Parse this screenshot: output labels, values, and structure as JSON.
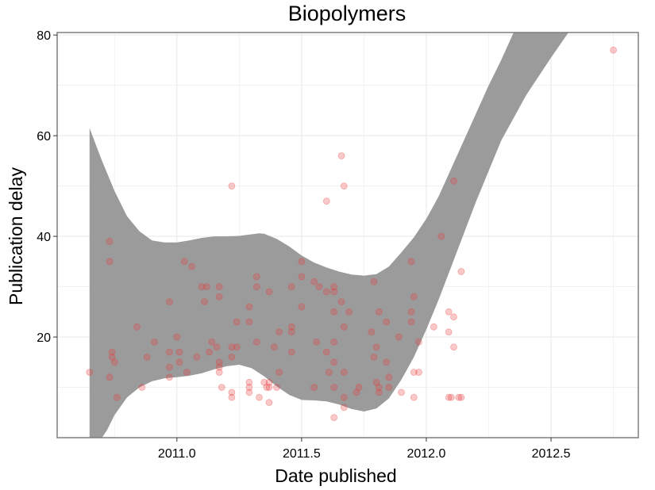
{
  "chart_data": {
    "type": "scatter",
    "title": "Biopolymers",
    "xlabel": "Date published",
    "ylabel": "Publication delay",
    "xlim": [
      2010.52,
      2012.85
    ],
    "ylim": [
      0,
      80.5
    ],
    "xticks": [
      2011.0,
      2011.5,
      2012.0,
      2012.5
    ],
    "xtick_labels": [
      "2011.0",
      "2011.5",
      "2012.0",
      "2012.5"
    ],
    "yticks": [
      20,
      40,
      60,
      80
    ],
    "ytick_labels": [
      "20",
      "40",
      "60",
      "80"
    ],
    "grid": true,
    "point_color": "#e8393a",
    "band_color": "#999999",
    "frame_color": "#7f7f7f",
    "grid_color": "#ebebeb",
    "points": [
      [
        2010.65,
        13
      ],
      [
        2010.73,
        39
      ],
      [
        2010.73,
        35
      ],
      [
        2010.73,
        12
      ],
      [
        2010.74,
        17
      ],
      [
        2010.74,
        16
      ],
      [
        2010.75,
        15
      ],
      [
        2010.76,
        8
      ],
      [
        2010.84,
        22
      ],
      [
        2010.86,
        10
      ],
      [
        2010.88,
        16
      ],
      [
        2010.91,
        19
      ],
      [
        2010.97,
        27
      ],
      [
        2010.97,
        17
      ],
      [
        2010.97,
        14
      ],
      [
        2010.97,
        12
      ],
      [
        2011.0,
        20
      ],
      [
        2011.01,
        17
      ],
      [
        2011.01,
        15
      ],
      [
        2011.03,
        35
      ],
      [
        2011.04,
        13
      ],
      [
        2011.06,
        34
      ],
      [
        2011.08,
        16
      ],
      [
        2011.1,
        30
      ],
      [
        2011.11,
        27
      ],
      [
        2011.12,
        30
      ],
      [
        2011.13,
        17
      ],
      [
        2011.14,
        19
      ],
      [
        2011.16,
        18
      ],
      [
        2011.17,
        30
      ],
      [
        2011.17,
        28
      ],
      [
        2011.17,
        15
      ],
      [
        2011.17,
        14
      ],
      [
        2011.17,
        13
      ],
      [
        2011.18,
        10
      ],
      [
        2011.22,
        50
      ],
      [
        2011.22,
        18
      ],
      [
        2011.22,
        16
      ],
      [
        2011.22,
        9
      ],
      [
        2011.22,
        8
      ],
      [
        2011.24,
        23
      ],
      [
        2011.24,
        18
      ],
      [
        2011.29,
        26
      ],
      [
        2011.29,
        23
      ],
      [
        2011.29,
        11
      ],
      [
        2011.29,
        10
      ],
      [
        2011.29,
        9
      ],
      [
        2011.32,
        32
      ],
      [
        2011.32,
        30
      ],
      [
        2011.32,
        19
      ],
      [
        2011.33,
        8
      ],
      [
        2011.35,
        11
      ],
      [
        2011.36,
        10
      ],
      [
        2011.37,
        29
      ],
      [
        2011.37,
        11
      ],
      [
        2011.37,
        10
      ],
      [
        2011.37,
        7
      ],
      [
        2011.39,
        18
      ],
      [
        2011.4,
        10
      ],
      [
        2011.41,
        21
      ],
      [
        2011.41,
        13
      ],
      [
        2011.46,
        30
      ],
      [
        2011.46,
        22
      ],
      [
        2011.46,
        21
      ],
      [
        2011.46,
        17
      ],
      [
        2011.5,
        35
      ],
      [
        2011.5,
        32
      ],
      [
        2011.5,
        26
      ],
      [
        2011.55,
        31
      ],
      [
        2011.55,
        10
      ],
      [
        2011.56,
        19
      ],
      [
        2011.57,
        30
      ],
      [
        2011.6,
        47
      ],
      [
        2011.6,
        29
      ],
      [
        2011.6,
        17
      ],
      [
        2011.61,
        13
      ],
      [
        2011.63,
        30
      ],
      [
        2011.63,
        29
      ],
      [
        2011.63,
        25
      ],
      [
        2011.63,
        19
      ],
      [
        2011.63,
        15
      ],
      [
        2011.63,
        10
      ],
      [
        2011.63,
        4
      ],
      [
        2011.66,
        56
      ],
      [
        2011.66,
        27
      ],
      [
        2011.67,
        50
      ],
      [
        2011.67,
        22
      ],
      [
        2011.67,
        13
      ],
      [
        2011.67,
        8
      ],
      [
        2011.67,
        6
      ],
      [
        2011.69,
        25
      ],
      [
        2011.72,
        9
      ],
      [
        2011.73,
        10
      ],
      [
        2011.78,
        21
      ],
      [
        2011.79,
        31
      ],
      [
        2011.79,
        16
      ],
      [
        2011.8,
        18
      ],
      [
        2011.8,
        11
      ],
      [
        2011.81,
        25
      ],
      [
        2011.81,
        10
      ],
      [
        2011.81,
        9
      ],
      [
        2011.84,
        23
      ],
      [
        2011.84,
        15
      ],
      [
        2011.85,
        10
      ],
      [
        2011.85,
        12
      ],
      [
        2011.89,
        20
      ],
      [
        2011.9,
        9
      ],
      [
        2011.94,
        35
      ],
      [
        2011.94,
        25
      ],
      [
        2011.94,
        23
      ],
      [
        2011.95,
        28
      ],
      [
        2011.95,
        13
      ],
      [
        2011.95,
        8
      ],
      [
        2011.97,
        13
      ],
      [
        2011.97,
        19
      ],
      [
        2012.03,
        22
      ],
      [
        2012.06,
        40
      ],
      [
        2012.09,
        25
      ],
      [
        2012.09,
        21
      ],
      [
        2012.09,
        8
      ],
      [
        2012.1,
        8
      ],
      [
        2012.11,
        51
      ],
      [
        2012.11,
        24
      ],
      [
        2012.11,
        18
      ],
      [
        2012.13,
        8
      ],
      [
        2012.14,
        8
      ],
      [
        2012.14,
        33
      ],
      [
        2012.75,
        77
      ]
    ],
    "band_upper": [
      [
        2010.65,
        61.5
      ],
      [
        2010.7,
        55
      ],
      [
        2010.75,
        49
      ],
      [
        2010.8,
        44
      ],
      [
        2010.85,
        41
      ],
      [
        2010.9,
        39.2
      ],
      [
        2010.95,
        38.8
      ],
      [
        2011.0,
        38.8
      ],
      [
        2011.05,
        39.2
      ],
      [
        2011.1,
        39.7
      ],
      [
        2011.15,
        40
      ],
      [
        2011.2,
        40
      ],
      [
        2011.25,
        40.1
      ],
      [
        2011.3,
        40.4
      ],
      [
        2011.33,
        40.6
      ],
      [
        2011.35,
        40.5
      ],
      [
        2011.4,
        39.5
      ],
      [
        2011.45,
        38
      ],
      [
        2011.5,
        36.2
      ],
      [
        2011.55,
        34.8
      ],
      [
        2011.6,
        33.8
      ],
      [
        2011.65,
        33
      ],
      [
        2011.7,
        32.4
      ],
      [
        2011.75,
        32.2
      ],
      [
        2011.8,
        32.5
      ],
      [
        2011.85,
        34
      ],
      [
        2011.9,
        36.8
      ],
      [
        2011.95,
        39.8
      ],
      [
        2012.0,
        43.5
      ],
      [
        2012.05,
        48
      ],
      [
        2012.1,
        53.5
      ],
      [
        2012.15,
        59
      ],
      [
        2012.2,
        64.5
      ],
      [
        2012.25,
        70
      ],
      [
        2012.3,
        75
      ],
      [
        2012.35,
        80.5
      ]
    ],
    "band_lower": [
      [
        2010.65,
        0
      ],
      [
        2010.7,
        0
      ],
      [
        2010.72,
        1.5
      ],
      [
        2010.75,
        4.5
      ],
      [
        2010.8,
        8
      ],
      [
        2010.85,
        10
      ],
      [
        2010.9,
        11.2
      ],
      [
        2010.95,
        11.8
      ],
      [
        2011.0,
        12
      ],
      [
        2011.05,
        12.3
      ],
      [
        2011.1,
        12.8
      ],
      [
        2011.15,
        13.6
      ],
      [
        2011.2,
        14.2
      ],
      [
        2011.25,
        14.5
      ],
      [
        2011.3,
        13.8
      ],
      [
        2011.35,
        12.2
      ],
      [
        2011.4,
        10.2
      ],
      [
        2011.45,
        8.5
      ],
      [
        2011.5,
        7.5
      ],
      [
        2011.55,
        7.4
      ],
      [
        2011.6,
        7.2
      ],
      [
        2011.65,
        6.6
      ],
      [
        2011.7,
        5.7
      ],
      [
        2011.75,
        5.2
      ],
      [
        2011.8,
        5.8
      ],
      [
        2011.85,
        7.8
      ],
      [
        2011.9,
        11.5
      ],
      [
        2011.95,
        16
      ],
      [
        2012.0,
        21.5
      ],
      [
        2012.05,
        27.5
      ],
      [
        2012.1,
        34
      ],
      [
        2012.15,
        40.5
      ],
      [
        2012.2,
        47
      ],
      [
        2012.25,
        53
      ],
      [
        2012.3,
        59
      ],
      [
        2012.4,
        68
      ],
      [
        2012.5,
        75.5
      ],
      [
        2012.57,
        80.5
      ]
    ]
  }
}
